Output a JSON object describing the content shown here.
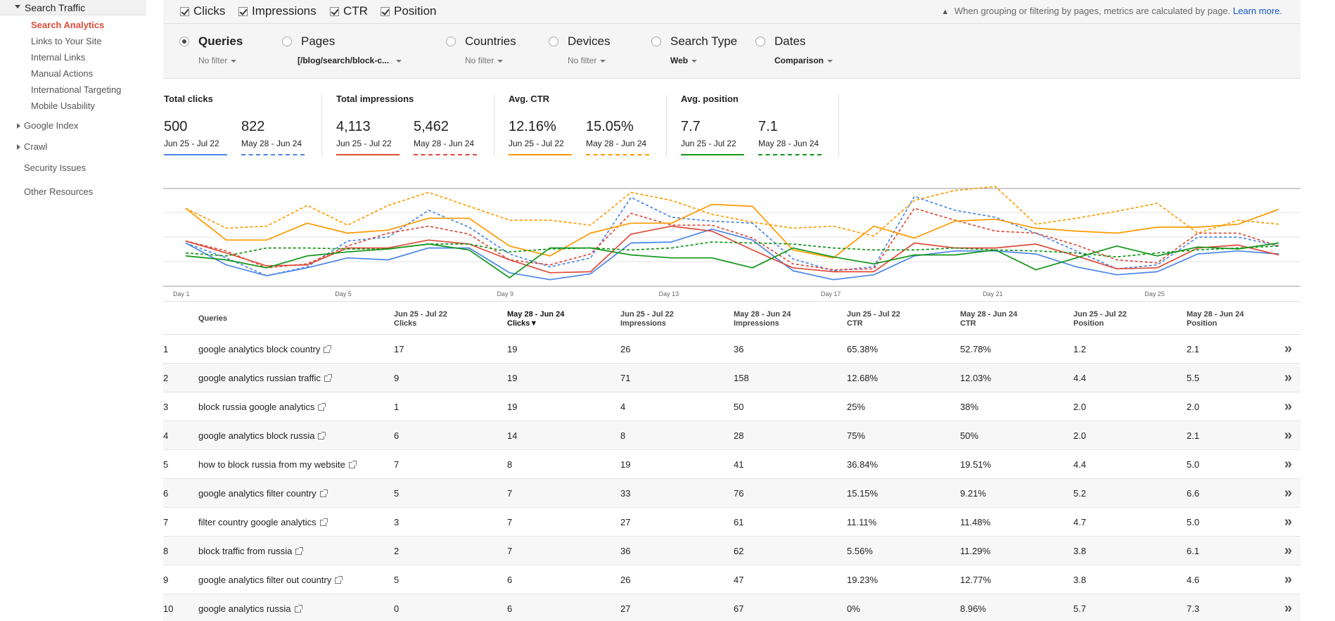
{
  "sidebar": {
    "section": "Search Traffic",
    "sub_items": [
      "Search Analytics",
      "Links to Your Site",
      "Internal Links",
      "Manual Actions",
      "International Targeting",
      "Mobile Usability"
    ],
    "expandable": [
      "Google Index",
      "Crawl"
    ],
    "plain": [
      "Security Issues",
      "Other Resources"
    ]
  },
  "metrics": {
    "clicks": "Clicks",
    "impressions": "Impressions",
    "ctr": "CTR",
    "position": "Position"
  },
  "notice": {
    "text": "When grouping or filtering by pages, metrics are calculated by page.",
    "link": "Learn more."
  },
  "filters": {
    "queries": {
      "name": "Queries",
      "value": "No filter"
    },
    "pages": {
      "name": "Pages",
      "value": "[/blog/search/block-c..."
    },
    "countries": {
      "name": "Countries",
      "value": "No filter"
    },
    "devices": {
      "name": "Devices",
      "value": "No filter"
    },
    "search_type": {
      "name": "Search Type",
      "value": "Web"
    },
    "dates": {
      "name": "Dates",
      "value": "Comparison"
    }
  },
  "totals": {
    "clicks": {
      "title": "Total clicks",
      "a": "500",
      "b": "822"
    },
    "impressions": {
      "title": "Total impressions",
      "a": "4,113",
      "b": "5,462"
    },
    "ctr": {
      "title": "Avg. CTR",
      "a": "12.16%",
      "b": "15.05%"
    },
    "position": {
      "title": "Avg. position",
      "a": "7.7",
      "b": "7.1"
    },
    "range_a": "Jun 25 - Jul 22",
    "range_b": "May 28 - Jun 24"
  },
  "colors": {
    "clicks": "#4a86e8",
    "impressions": "#dd4b39",
    "ctr": "#ff9900",
    "position": "#109618"
  },
  "chart_data": {
    "type": "line",
    "x": [
      1,
      2,
      3,
      4,
      5,
      6,
      7,
      8,
      9,
      10,
      11,
      12,
      13,
      14,
      15,
      16,
      17,
      18,
      19,
      20,
      21,
      22,
      23,
      24,
      25,
      26,
      27,
      28
    ],
    "x_tick_labels": [
      "Day 1",
      "Day 5",
      "Day 9",
      "Day 13",
      "Day 17",
      "Day 21",
      "Day 25"
    ],
    "x_tick_values": [
      1,
      5,
      9,
      13,
      17,
      21,
      25
    ],
    "ylim": [
      0,
      100
    ],
    "series": [
      {
        "metric": "clicks",
        "period": "a",
        "dashed": false,
        "values": [
          45,
          23,
          12,
          20,
          30,
          28,
          40,
          40,
          15,
          8,
          14,
          45,
          46,
          59,
          48,
          17,
          8,
          13,
          32,
          37,
          37,
          34,
          21,
          13,
          16,
          34,
          37,
          34
        ]
      },
      {
        "metric": "clicks",
        "period": "b",
        "dashed": true,
        "values": [
          45,
          30,
          12,
          21,
          47,
          51,
          78,
          61,
          34,
          21,
          30,
          91,
          71,
          67,
          65,
          29,
          17,
          21,
          92,
          78,
          71,
          55,
          37,
          19,
          23,
          51,
          51,
          42
        ]
      },
      {
        "metric": "impressions",
        "period": "a",
        "dashed": false,
        "values": [
          47,
          35,
          22,
          23,
          40,
          40,
          48,
          44,
          28,
          15,
          16,
          54,
          62,
          57,
          38,
          20,
          16,
          16,
          45,
          40,
          40,
          44,
          32,
          19,
          20,
          40,
          43,
          33
        ]
      },
      {
        "metric": "impressions",
        "period": "b",
        "dashed": true,
        "values": [
          47,
          37,
          20,
          24,
          42,
          55,
          62,
          54,
          28,
          23,
          34,
          75,
          63,
          63,
          50,
          24,
          18,
          19,
          80,
          68,
          57,
          55,
          43,
          28,
          25,
          55,
          55,
          42
        ]
      },
      {
        "metric": "ctr",
        "period": "a",
        "dashed": false,
        "values": [
          80,
          48,
          48,
          65,
          55,
          58,
          70,
          70,
          42,
          32,
          55,
          65,
          65,
          84,
          82,
          38,
          30,
          62,
          50,
          67,
          69,
          60,
          57,
          55,
          61,
          61,
          64,
          79
        ]
      },
      {
        "metric": "ctr",
        "period": "b",
        "dashed": true,
        "values": [
          80,
          60,
          62,
          83,
          63,
          83,
          96,
          82,
          68,
          68,
          63,
          96,
          88,
          74,
          66,
          60,
          62,
          52,
          88,
          98,
          102,
          64,
          70,
          77,
          85,
          55,
          68,
          64
        ]
      },
      {
        "metric": "position",
        "period": "a",
        "dashed": false,
        "values": [
          32,
          28,
          20,
          32,
          36,
          39,
          44,
          38,
          10,
          40,
          40,
          33,
          30,
          30,
          20,
          40,
          31,
          24,
          33,
          33,
          38,
          18,
          30,
          42,
          32,
          41,
          39,
          45
        ]
      },
      {
        "metric": "position",
        "period": "b",
        "dashed": true,
        "values": [
          35,
          32,
          40,
          40,
          39,
          39,
          44,
          44,
          36,
          39,
          40,
          38,
          40,
          46,
          45,
          44,
          40,
          38,
          38,
          40,
          38,
          37,
          35,
          31,
          35,
          38,
          40,
          42
        ]
      }
    ]
  },
  "table": {
    "headers": [
      {
        "l1": "",
        "l2": "Queries"
      },
      {
        "l1": "Jun 25 - Jul 22",
        "l2": "Clicks"
      },
      {
        "l1": "May 28 - Jun 24",
        "l2": "Clicks▼"
      },
      {
        "l1": "Jun 25 - Jul 22",
        "l2": "Impressions"
      },
      {
        "l1": "May 28 - Jun 24",
        "l2": "Impressions"
      },
      {
        "l1": "Jun 25 - Jul 22",
        "l2": "CTR"
      },
      {
        "l1": "May 28 - Jun 24",
        "l2": "CTR"
      },
      {
        "l1": "Jun 25 - Jul 22",
        "l2": "Position"
      },
      {
        "l1": "May 28 - Jun 24",
        "l2": "Position"
      }
    ],
    "rows": [
      [
        "1",
        "google analytics block country",
        "17",
        "19",
        "26",
        "36",
        "65.38%",
        "52.78%",
        "1.2",
        "2.1"
      ],
      [
        "2",
        "google analytics russian traffic",
        "9",
        "19",
        "71",
        "158",
        "12.68%",
        "12.03%",
        "4.4",
        "5.5"
      ],
      [
        "3",
        "block russia google analytics",
        "1",
        "19",
        "4",
        "50",
        "25%",
        "38%",
        "2.0",
        "2.0"
      ],
      [
        "4",
        "google analytics block russia",
        "6",
        "14",
        "8",
        "28",
        "75%",
        "50%",
        "2.0",
        "2.1"
      ],
      [
        "5",
        "how to block russia from my website",
        "7",
        "8",
        "19",
        "41",
        "36.84%",
        "19.51%",
        "4.4",
        "5.0"
      ],
      [
        "6",
        "google analytics filter country",
        "5",
        "7",
        "33",
        "76",
        "15.15%",
        "9.21%",
        "5.2",
        "6.6"
      ],
      [
        "7",
        "filter country google analytics",
        "3",
        "7",
        "27",
        "61",
        "11.11%",
        "11.48%",
        "4.7",
        "5.0"
      ],
      [
        "8",
        "block traffic from russia",
        "2",
        "7",
        "36",
        "62",
        "5.56%",
        "11.29%",
        "3.8",
        "6.1"
      ],
      [
        "9",
        "google analytics filter out country",
        "5",
        "6",
        "26",
        "47",
        "19.23%",
        "12.77%",
        "3.8",
        "4.6"
      ],
      [
        "10",
        "google analytics russia",
        "0",
        "6",
        "27",
        "67",
        "0%",
        "8.96%",
        "5.7",
        "7.3"
      ]
    ],
    "row_action_icon": "double-chevron-right-icon"
  }
}
